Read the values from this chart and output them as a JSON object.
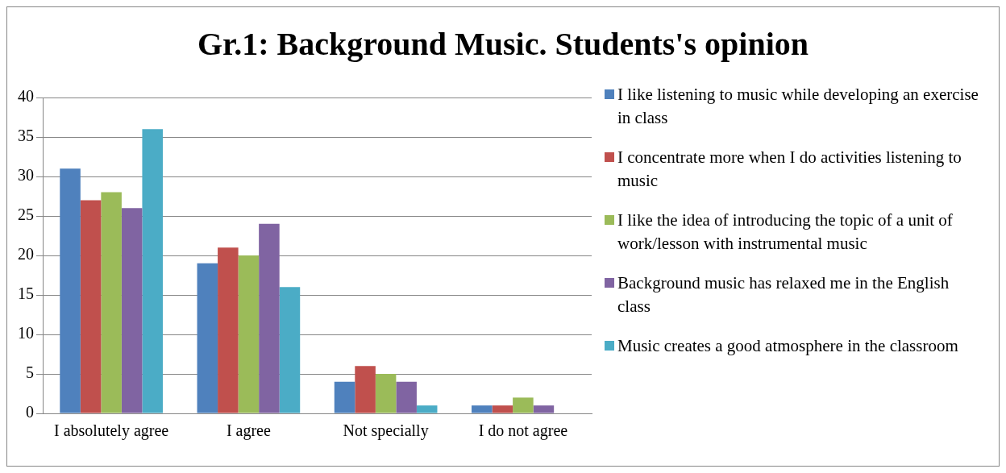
{
  "chart_data": {
    "type": "bar",
    "title": "Gr.1: Background Music. Students's opinion",
    "categories": [
      "I absolutely agree",
      "I agree",
      "Not specially",
      "I do not agree"
    ],
    "series": [
      {
        "name": "I like listening to music while developing an exercise in class",
        "color": "#4f81bd",
        "values": [
          31,
          19,
          4,
          1
        ]
      },
      {
        "name": "I concentrate more when I do activities listening to music",
        "color": "#c0504d",
        "values": [
          27,
          21,
          6,
          1
        ]
      },
      {
        "name": "I like the idea of introducing the topic of a unit of work/lesson with instrumental music",
        "color": "#9bbb59",
        "values": [
          28,
          20,
          5,
          2
        ]
      },
      {
        "name": "Background music has relaxed me in the English class",
        "color": "#8064a2",
        "values": [
          26,
          24,
          4,
          1
        ]
      },
      {
        "name": "Music creates a good atmosphere in the classroom",
        "color": "#4bacc6",
        "values": [
          36,
          16,
          1,
          0
        ]
      }
    ],
    "ylim": [
      0,
      40
    ],
    "yticks": [
      0,
      5,
      10,
      15,
      20,
      25,
      30,
      35,
      40
    ],
    "grid": "y",
    "legend": "right"
  }
}
